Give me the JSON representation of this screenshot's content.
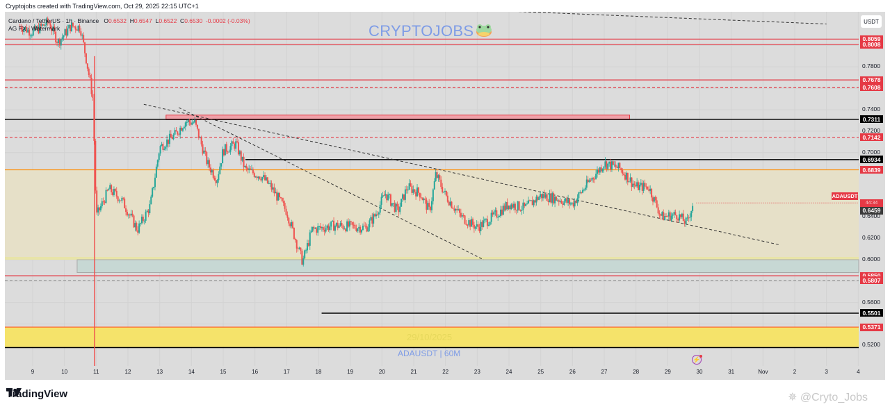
{
  "header": {
    "caption": "Cryptojobs created with TradingView.com, Oct 29, 2025 22:15 UTC+1"
  },
  "legend": {
    "symbol_line": "Cardano / TetherUS · 1h · Binance",
    "open_label": "O",
    "open": "0.6532",
    "high_label": "H",
    "high": "0.6547",
    "low_label": "L",
    "low": "0.6522",
    "close_label": "C",
    "close": "0.6530",
    "change": "-0.0002 (-0.03%)",
    "indicator": "AG FX · Watermark"
  },
  "watermark": {
    "title": "CRYPTOJOBS",
    "date": "29/10/2025",
    "symbol": "ADAUSDT | 60M"
  },
  "price_axis": {
    "currency_button": "USDT",
    "ticks": [
      "0.7800",
      "0.7400",
      "0.7200",
      "0.7000",
      "0.6400",
      "0.6200",
      "0.6000",
      "0.5600",
      "0.5200"
    ],
    "labels": [
      {
        "value": "0.8059",
        "color": "#e53945"
      },
      {
        "value": "0.8008",
        "color": "#e53945"
      },
      {
        "value": "0.7678",
        "color": "#e53945"
      },
      {
        "value": "0.7608",
        "color": "#e53945"
      },
      {
        "value": "0.7311",
        "color": "#000000"
      },
      {
        "value": "0.7142",
        "color": "#e53945"
      },
      {
        "value": "0.6934",
        "color": "#000000"
      },
      {
        "value": "0.6839",
        "color": "#e53945"
      },
      {
        "value": "0.6530",
        "color": "#e53945"
      },
      {
        "value": "0.6459",
        "color": "#3a3a3a"
      },
      {
        "value": "0.5850",
        "color": "#e53945"
      },
      {
        "value": "0.5807",
        "color": "#e53945"
      },
      {
        "value": "0.5501",
        "color": "#000000"
      },
      {
        "value": "0.5371",
        "color": "#e53945"
      }
    ],
    "symbol_tag": "ADAUSDT",
    "countdown": "44:34"
  },
  "time_axis": {
    "ticks": [
      "9",
      "10",
      "11",
      "12",
      "13",
      "14",
      "15",
      "16",
      "17",
      "18",
      "19",
      "20",
      "21",
      "22",
      "23",
      "24",
      "25",
      "26",
      "27",
      "28",
      "29",
      "30",
      "31",
      "Nov",
      "2",
      "3",
      "4"
    ]
  },
  "footer": {
    "brand": "TradingView",
    "attribution": "@Cryto_Jobs"
  },
  "colors": {
    "up": "#26a69a",
    "down": "#ef5350",
    "accent_red": "#e53945",
    "zone_yellow": "#f5e36a",
    "zone_beige": "#e6e0c8",
    "bg": "#dcdcdc"
  },
  "chart_data": {
    "type": "candlestick",
    "title": "Cardano / TetherUS · 1h · Binance",
    "xlabel": "",
    "ylabel": "USDT",
    "ylim": [
      0.508,
      0.832
    ],
    "x_categories": [
      "9",
      "10",
      "11",
      "12",
      "13",
      "14",
      "15",
      "16",
      "17",
      "18",
      "19",
      "20",
      "21",
      "22",
      "23",
      "24",
      "25",
      "26",
      "27",
      "28",
      "29",
      "30"
    ],
    "close_path": [
      {
        "day": 8.6,
        "price": 0.818
      },
      {
        "day": 9.0,
        "price": 0.812
      },
      {
        "day": 9.5,
        "price": 0.822
      },
      {
        "day": 9.8,
        "price": 0.803
      },
      {
        "day": 10.2,
        "price": 0.818
      },
      {
        "day": 10.5,
        "price": 0.817
      },
      {
        "day": 10.7,
        "price": 0.785
      },
      {
        "day": 10.9,
        "price": 0.75
      },
      {
        "day": 11.0,
        "price": 0.64
      },
      {
        "day": 11.4,
        "price": 0.666
      },
      {
        "day": 11.8,
        "price": 0.656
      },
      {
        "day": 12.3,
        "price": 0.628
      },
      {
        "day": 12.7,
        "price": 0.65
      },
      {
        "day": 13.0,
        "price": 0.705
      },
      {
        "day": 13.5,
        "price": 0.717
      },
      {
        "day": 13.8,
        "price": 0.729
      },
      {
        "day": 14.1,
        "price": 0.728
      },
      {
        "day": 14.5,
        "price": 0.69
      },
      {
        "day": 14.8,
        "price": 0.675
      },
      {
        "day": 15.0,
        "price": 0.702
      },
      {
        "day": 15.4,
        "price": 0.708
      },
      {
        "day": 15.7,
        "price": 0.684
      },
      {
        "day": 16.2,
        "price": 0.678
      },
      {
        "day": 16.5,
        "price": 0.668
      },
      {
        "day": 17.0,
        "price": 0.645
      },
      {
        "day": 17.5,
        "price": 0.598
      },
      {
        "day": 17.8,
        "price": 0.628
      },
      {
        "day": 18.5,
        "price": 0.632
      },
      {
        "day": 19.5,
        "price": 0.63
      },
      {
        "day": 19.8,
        "price": 0.642
      },
      {
        "day": 20.1,
        "price": 0.662
      },
      {
        "day": 20.5,
        "price": 0.645
      },
      {
        "day": 20.8,
        "price": 0.668
      },
      {
        "day": 21.2,
        "price": 0.662
      },
      {
        "day": 21.5,
        "price": 0.645
      },
      {
        "day": 21.7,
        "price": 0.68
      },
      {
        "day": 22.0,
        "price": 0.66
      },
      {
        "day": 22.5,
        "price": 0.64
      },
      {
        "day": 23.0,
        "price": 0.63
      },
      {
        "day": 23.5,
        "price": 0.64
      },
      {
        "day": 24.0,
        "price": 0.652
      },
      {
        "day": 24.5,
        "price": 0.648
      },
      {
        "day": 25.0,
        "price": 0.66
      },
      {
        "day": 25.5,
        "price": 0.657
      },
      {
        "day": 26.0,
        "price": 0.652
      },
      {
        "day": 26.5,
        "price": 0.672
      },
      {
        "day": 27.0,
        "price": 0.69
      },
      {
        "day": 27.5,
        "price": 0.685
      },
      {
        "day": 28.0,
        "price": 0.668
      },
      {
        "day": 28.4,
        "price": 0.668
      },
      {
        "day": 28.8,
        "price": 0.64
      },
      {
        "day": 29.3,
        "price": 0.642
      },
      {
        "day": 29.6,
        "price": 0.634
      },
      {
        "day": 29.8,
        "price": 0.653
      }
    ],
    "horizontal_levels": [
      {
        "price": 0.8059,
        "style": "solid",
        "color": "#e53945"
      },
      {
        "price": 0.8008,
        "style": "solid",
        "color": "#e53945"
      },
      {
        "price": 0.7678,
        "style": "solid",
        "color": "#e53945"
      },
      {
        "price": 0.7608,
        "style": "dashed",
        "color": "#e53945"
      },
      {
        "price": 0.7311,
        "style": "solid",
        "color": "#000000"
      },
      {
        "price": 0.7142,
        "style": "dashed",
        "color": "#e53945"
      },
      {
        "price": 0.6934,
        "style": "solid",
        "color": "#000000",
        "from_day": 15.7
      },
      {
        "price": 0.6839,
        "style": "solid",
        "color": "#ff8c00"
      },
      {
        "price": 0.585,
        "style": "solid",
        "color": "#e53945"
      },
      {
        "price": 0.5807,
        "style": "dashed",
        "color": "#999999"
      },
      {
        "price": 0.5501,
        "style": "solid",
        "color": "#000000",
        "from_day": 18.1
      },
      {
        "price": 0.5371,
        "style": "solid",
        "color": "#ff5722"
      },
      {
        "price": 0.518,
        "style": "solid",
        "color": "#000000"
      }
    ],
    "zones": [
      {
        "label": "range",
        "from": 0.6,
        "to": 0.6839,
        "color": "#e6e0c8"
      },
      {
        "label": "support-box",
        "from": 0.588,
        "to": 0.6,
        "color": "#c7d8d4"
      },
      {
        "label": "demand-yellow",
        "from": 0.5185,
        "to": 0.5371,
        "color": "#f5e36a"
      },
      {
        "label": "resistance-strip",
        "from": 0.732,
        "to": 0.735,
        "color": "#f0a0a8"
      }
    ],
    "trendlines": [
      {
        "from": {
          "day": 13.6,
          "price": 0.742
        },
        "to": {
          "day": 23.2,
          "price": 0.6
        },
        "style": "dashed"
      },
      {
        "from": {
          "day": 12.5,
          "price": 0.745
        },
        "to": {
          "day": 32.5,
          "price": 0.614
        },
        "style": "dashed"
      },
      {
        "from": {
          "day": 24.0,
          "price": 0.832
        },
        "to": {
          "day": 34.0,
          "price": 0.82
        },
        "style": "dashed"
      }
    ],
    "last_price": 0.653,
    "prev_close": 0.6459
  }
}
